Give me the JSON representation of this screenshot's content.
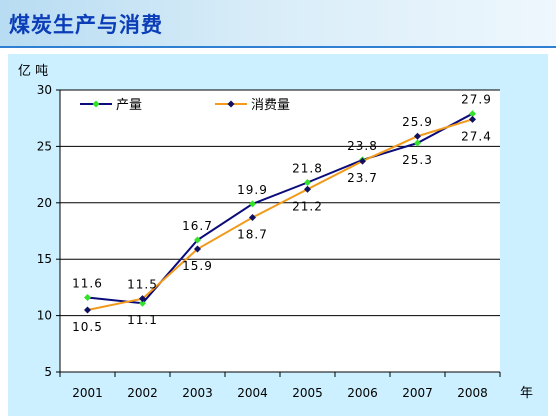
{
  "header": {
    "title": "煤炭生产与消费"
  },
  "chart_data": {
    "type": "line",
    "title": "",
    "ylabel": "亿 吨",
    "xlabel": "年",
    "categories": [
      "2001",
      "2002",
      "2003",
      "2004",
      "2005",
      "2006",
      "2007",
      "2008"
    ],
    "ylim": [
      5,
      30
    ],
    "yticks": [
      5,
      10,
      15,
      20,
      25,
      30
    ],
    "grid": "horizontal",
    "legend_position": "top-left",
    "series": [
      {
        "name": "产量",
        "values": [
          11.6,
          11.1,
          16.7,
          19.9,
          21.8,
          23.8,
          25.3,
          27.9
        ],
        "labels": [
          "11.6",
          "11.1",
          "16.7",
          "19.9",
          "21.8",
          "23.8",
          "25.3",
          "27.9"
        ],
        "line_color": "#0b0b7a",
        "marker_color": "#33e02a",
        "marker": "diamond"
      },
      {
        "name": "消费量",
        "values": [
          10.5,
          11.5,
          15.9,
          18.7,
          21.2,
          23.7,
          25.9,
          27.4
        ],
        "labels": [
          "10.5",
          "11.5",
          "15.9",
          "18.7",
          "21.2",
          "23.7",
          "25.9",
          "27.4"
        ],
        "line_color": "#f29a1a",
        "marker_color": "#101060",
        "marker": "diamond"
      }
    ]
  }
}
